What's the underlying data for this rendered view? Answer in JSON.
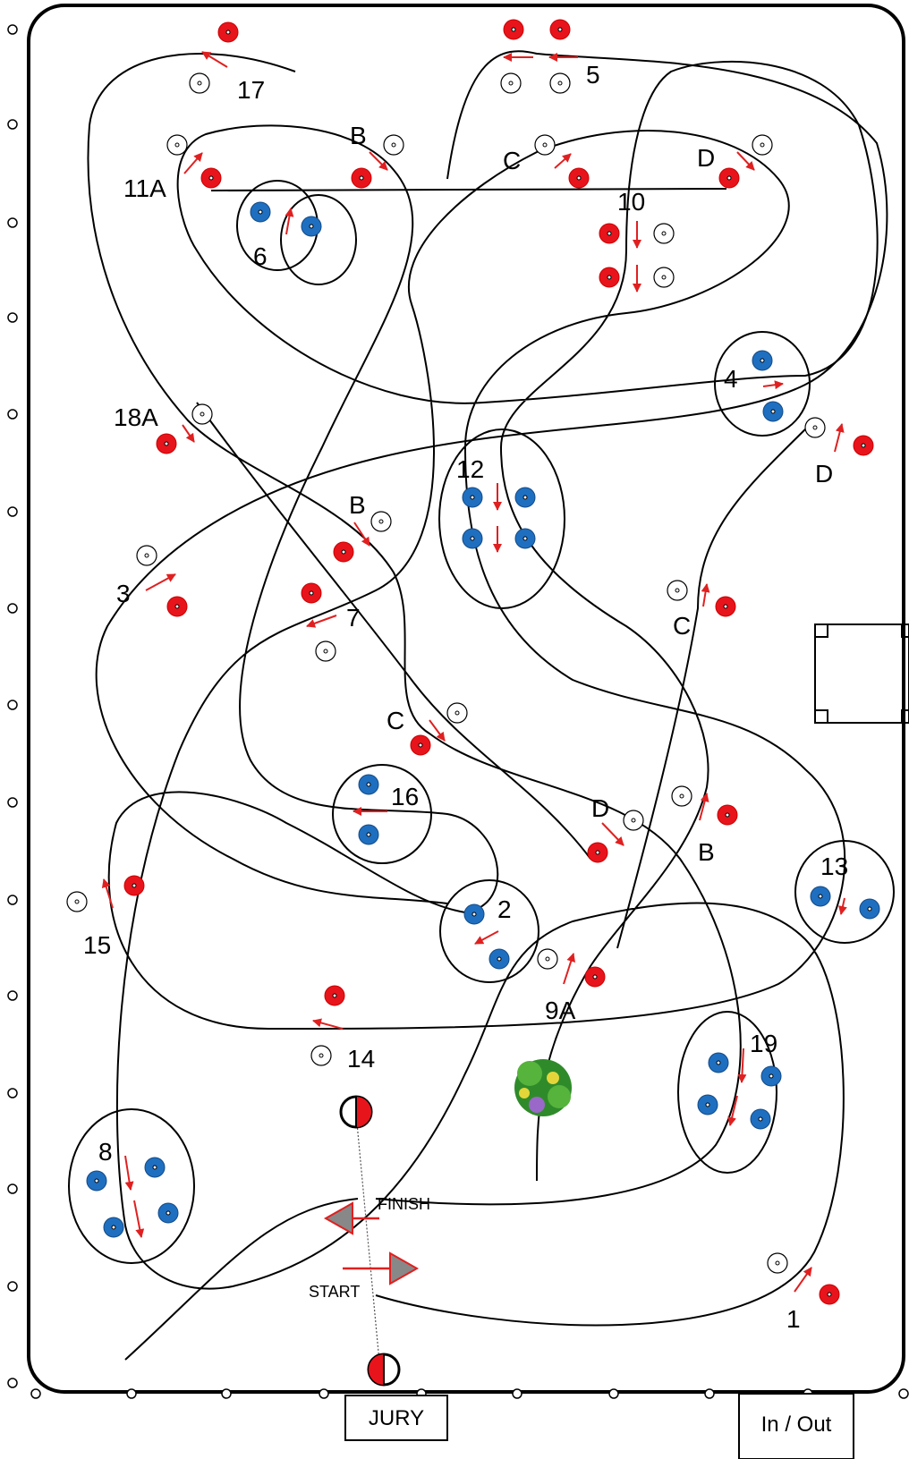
{
  "labels": {
    "n17": "17",
    "n5": "5",
    "n11a": "11A",
    "n6": "6",
    "n10": "10",
    "n4": "4",
    "n18a": "18A",
    "n12": "12",
    "n3": "3",
    "n7": "7",
    "n16": "16",
    "n2": "2",
    "n13": "13",
    "n15": "15",
    "n9a": "9A",
    "n14": "14",
    "n19": "19",
    "n8": "8",
    "n1": "1",
    "b1": "B",
    "c1": "C",
    "d1": "D",
    "b2": "B",
    "c2": "C",
    "d2": "D",
    "b3": "B",
    "c3": "C",
    "d3": "D"
  },
  "finish": "FINISH",
  "start": "START",
  "jury": "JURY",
  "inout": "In / Out",
  "colors": {
    "red": "#e8141c",
    "blue": "#1f6fc1",
    "arrow": "#e02020",
    "arrow_fill": "#888888"
  }
}
